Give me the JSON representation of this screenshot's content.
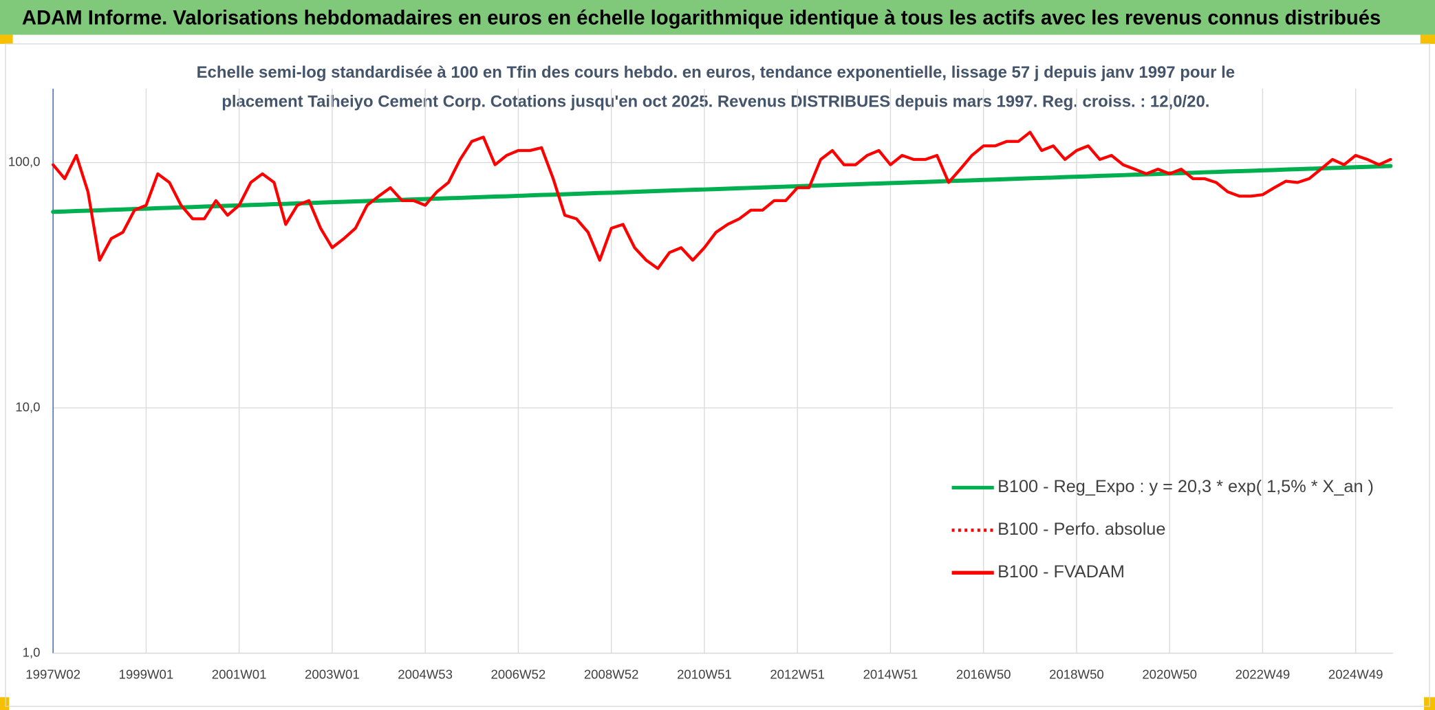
{
  "chart_data": {
    "type": "line",
    "title": "ADAM Informe. Valorisations hebdomadaires en euros en échelle logarithmique identique à tous les actifs avec les revenus connus distribués",
    "subtitle": [
      "Echelle semi-log standardisée à 100 en Tfin des cours hebdo. en euros, tendance exponentielle, lissage 57 j depuis janv 1997 pour le",
      "placement Taiheiyo Cement Corp. Cotations jusqu'en oct 2025. Revenus DISTRIBUES depuis mars 1997. Reg. croiss. : 12,0/20."
    ],
    "categories": [
      "1997W02",
      null,
      null,
      null,
      null,
      null,
      null,
      null,
      "1999W01",
      null,
      null,
      null,
      null,
      null,
      null,
      null,
      "2001W01",
      null,
      null,
      null,
      null,
      null,
      null,
      null,
      "2003W01",
      null,
      null,
      null,
      null,
      null,
      null,
      null,
      "2004W53",
      null,
      null,
      null,
      null,
      null,
      null,
      null,
      "2006W52",
      null,
      null,
      null,
      null,
      null,
      null,
      null,
      "2008W52",
      null,
      null,
      null,
      null,
      null,
      null,
      null,
      "2010W51",
      null,
      null,
      null,
      null,
      null,
      null,
      null,
      "2012W51",
      null,
      null,
      null,
      null,
      null,
      null,
      null,
      "2014W51",
      null,
      null,
      null,
      null,
      null,
      null,
      null,
      "2016W50",
      null,
      null,
      null,
      null,
      null,
      null,
      null,
      "2018W50",
      null,
      null,
      null,
      null,
      null,
      null,
      null,
      "2020W50",
      null,
      null,
      null,
      null,
      null,
      null,
      null,
      "2022W49",
      null,
      null,
      null,
      null,
      null,
      null,
      null,
      "2024W49",
      null,
      null,
      null
    ],
    "series": [
      {
        "name": "B100 - Reg_Expo : y = 20,3 * exp( 1,5% *  X_an )",
        "color": "#00b050",
        "values": [
          63.0,
          63.2,
          63.5,
          63.7,
          63.9,
          64.2,
          64.4,
          64.7,
          64.9,
          65.2,
          65.4,
          65.7,
          65.9,
          66.2,
          66.4,
          66.7,
          66.9,
          67.2,
          67.4,
          67.7,
          67.9,
          68.2,
          68.4,
          68.7,
          69.0,
          69.2,
          69.5,
          69.7,
          70.0,
          70.2,
          70.5,
          70.8,
          71.0,
          71.3,
          71.6,
          71.8,
          72.1,
          72.4,
          72.7,
          72.9,
          73.2,
          73.5,
          73.8,
          74.0,
          74.3,
          74.6,
          74.9,
          75.2,
          75.4,
          75.7,
          76.0,
          76.3,
          76.6,
          76.9,
          77.2,
          77.5,
          77.7,
          78.0,
          78.3,
          78.6,
          78.9,
          79.2,
          79.5,
          79.8,
          80.1,
          80.4,
          80.7,
          81.0,
          81.3,
          81.6,
          81.9,
          82.2,
          82.5,
          82.8,
          83.1,
          83.4,
          83.7,
          84.1,
          84.4,
          84.7,
          85.0,
          85.3,
          85.6,
          86.0,
          86.3,
          86.6,
          86.9,
          87.3,
          87.6,
          87.9,
          88.3,
          88.6,
          88.9,
          89.3,
          89.6,
          89.9,
          90.3,
          90.6,
          90.9,
          91.3,
          91.6,
          92.0,
          92.3,
          92.6,
          93.0,
          93.3,
          93.7,
          94.0,
          94.4,
          94.7,
          95.1,
          95.4,
          95.8,
          96.1,
          96.5,
          96.9
        ]
      },
      {
        "name": "B100 - Perfo. absolue",
        "color": "#ff0000",
        "dashed": true,
        "values": [
          null,
          null,
          null,
          null,
          null,
          null,
          null,
          null,
          null,
          null,
          null,
          null,
          null,
          null,
          null,
          null,
          null,
          null,
          null,
          null,
          null,
          null,
          null,
          null,
          null,
          null,
          null,
          null,
          null,
          null,
          null,
          null,
          null,
          null,
          null,
          null,
          null,
          null,
          null,
          null,
          null,
          null,
          null,
          null,
          null,
          null,
          null,
          null,
          null,
          null,
          null,
          null,
          null,
          null,
          null,
          null,
          null,
          null,
          null,
          null,
          null,
          null,
          null,
          null,
          null,
          null,
          null,
          null,
          null,
          null,
          null,
          null,
          null,
          null,
          null,
          null,
          null,
          null,
          null,
          null,
          null,
          null,
          null,
          null,
          null,
          null,
          null,
          null,
          null,
          null,
          null,
          null,
          null,
          null,
          null,
          null,
          null,
          null,
          null,
          null,
          null,
          null,
          null,
          null,
          null,
          null,
          null,
          null,
          null,
          null,
          null,
          null,
          null,
          null,
          null,
          null
        ]
      },
      {
        "name": "B100 - FVADAM",
        "color": "#ff0000",
        "values": [
          98,
          86,
          107,
          76,
          40,
          49,
          52,
          64,
          67,
          90,
          83,
          67,
          59,
          59,
          70,
          61,
          67,
          83,
          90,
          83,
          56,
          67,
          70,
          54,
          45,
          49,
          54,
          67,
          73,
          79,
          70,
          70,
          67,
          76,
          83,
          103,
          122,
          127,
          98,
          107,
          112,
          112,
          115,
          86,
          61,
          59,
          52,
          40,
          54,
          56,
          45,
          40,
          37,
          43,
          45,
          40,
          45,
          52,
          56,
          59,
          64,
          64,
          70,
          70,
          79,
          79,
          103,
          112,
          98,
          98,
          107,
          112,
          98,
          107,
          103,
          103,
          107,
          83,
          94,
          107,
          117,
          117,
          122,
          122,
          133,
          112,
          117,
          103,
          112,
          117,
          103,
          107,
          98,
          94,
          90,
          94,
          90,
          94,
          86,
          86,
          83,
          76,
          73,
          73,
          74,
          79,
          84,
          83,
          86,
          94,
          103,
          98,
          107,
          103,
          98,
          103
        ]
      }
    ],
    "log_scale": true,
    "ylim": [
      1,
      200
    ],
    "yticks": [
      {
        "value": 1,
        "label": "1,0"
      },
      {
        "value": 10,
        "label": "10,0"
      },
      {
        "value": 100,
        "label": "100,0"
      }
    ],
    "grid": true,
    "legend": "right"
  }
}
